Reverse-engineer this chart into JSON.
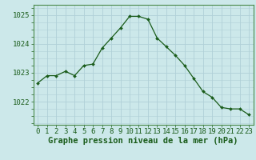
{
  "hours": [
    0,
    1,
    2,
    3,
    4,
    5,
    6,
    7,
    8,
    9,
    10,
    11,
    12,
    13,
    14,
    15,
    16,
    17,
    18,
    19,
    20,
    21,
    22,
    23
  ],
  "pressure": [
    1022.65,
    1022.9,
    1022.9,
    1023.05,
    1022.9,
    1023.25,
    1023.3,
    1023.85,
    1024.2,
    1024.55,
    1024.95,
    1024.95,
    1024.85,
    1024.2,
    1023.9,
    1023.6,
    1023.25,
    1022.8,
    1022.35,
    1022.15,
    1021.8,
    1021.75,
    1021.75,
    1021.55
  ],
  "line_color": "#1a5c1a",
  "marker_color": "#1a5c1a",
  "bg_color": "#cce8ea",
  "grid_color_major": "#b0d0d8",
  "grid_color_minor": "#d8eaec",
  "ylabel_ticks": [
    1022,
    1023,
    1024,
    1025
  ],
  "ylim": [
    1021.2,
    1025.35
  ],
  "xlabel": "Graphe pression niveau de la mer (hPa)",
  "tick_fontsize": 6.5,
  "xlabel_fontsize": 7.5
}
